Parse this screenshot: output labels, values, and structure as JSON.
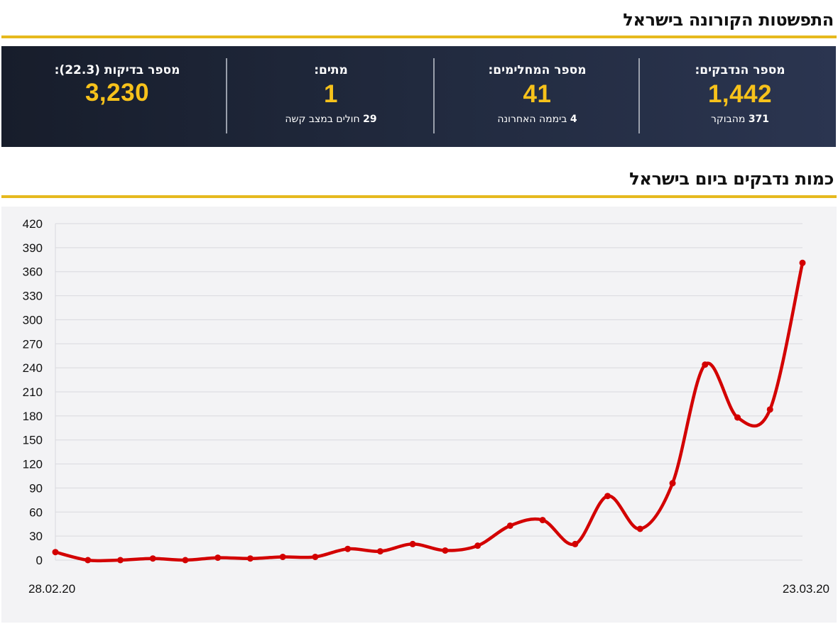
{
  "header": {
    "title": "התפשטות הקורונה בישראל"
  },
  "stats": [
    {
      "label": "מספר הנדבקים:",
      "value": "1,442",
      "sub_number": "371",
      "sub_text": "מהבוקר"
    },
    {
      "label": "מספר המחלימים:",
      "value": "41",
      "sub_number": "4",
      "sub_text": "ביממה האחרונה"
    },
    {
      "label": "מתים:",
      "value": "1",
      "sub_number": "29",
      "sub_text": "חולים במצב קשה"
    },
    {
      "label": "מספר בדיקות (22.3):",
      "value": "3,230",
      "sub_number": "",
      "sub_text": ""
    }
  ],
  "chart_section": {
    "title": "כמות נדבקים ביום בישראל"
  },
  "colors": {
    "accent_gold": "#e6b91e",
    "value_yellow": "#f7c21b",
    "line_red": "#d30000",
    "panel_dark": "#1e2537"
  },
  "chart_data": {
    "type": "line",
    "title": "כמות נדבקים ביום בישראל",
    "x_start_label": "28.02.20",
    "x_end_label": "23.03.20",
    "y_ticks": [
      0,
      30,
      60,
      90,
      120,
      150,
      180,
      210,
      240,
      270,
      300,
      330,
      360,
      390,
      420
    ],
    "ylim": [
      0,
      420
    ],
    "grid": true,
    "series": [
      {
        "values": [
          10,
          0,
          0,
          2,
          0,
          3,
          2,
          4,
          4,
          14,
          11,
          20,
          12,
          18,
          43,
          50,
          20,
          80,
          39,
          96,
          244,
          178,
          188,
          371
        ]
      }
    ]
  }
}
